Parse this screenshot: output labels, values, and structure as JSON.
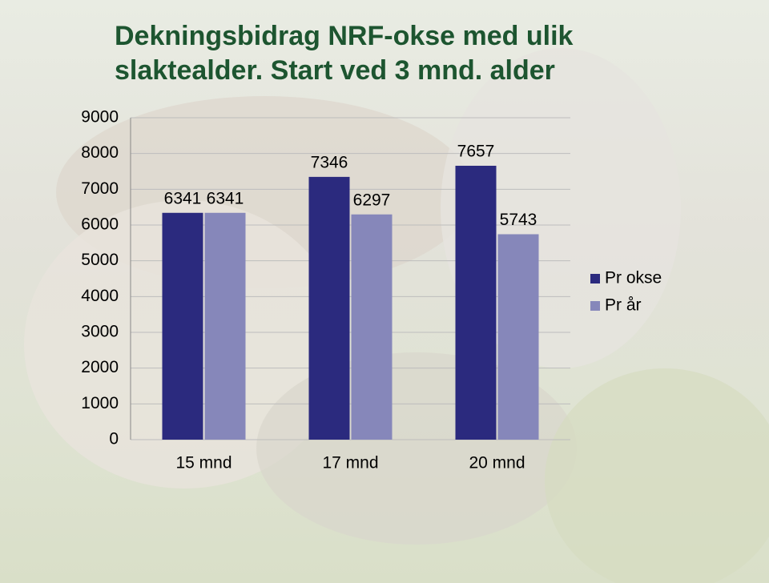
{
  "chart_data": {
    "type": "bar",
    "title": "Dekningsbidrag  NRF-okse med ulik slaktealder. Start ved 3 mnd. alder",
    "categories": [
      "15 mnd",
      "17 mnd",
      "20 mnd"
    ],
    "series": [
      {
        "name": "Pr okse",
        "color": "#2b2a7e",
        "values": [
          6341,
          7346,
          7657
        ]
      },
      {
        "name": "Pr år",
        "color": "#8687ba",
        "values": [
          6341,
          6297,
          5743
        ]
      }
    ],
    "ylim": [
      0,
      9000
    ],
    "yticks": [
      0,
      1000,
      2000,
      3000,
      4000,
      5000,
      6000,
      7000,
      8000,
      9000
    ],
    "grid": true,
    "legend": "right"
  }
}
